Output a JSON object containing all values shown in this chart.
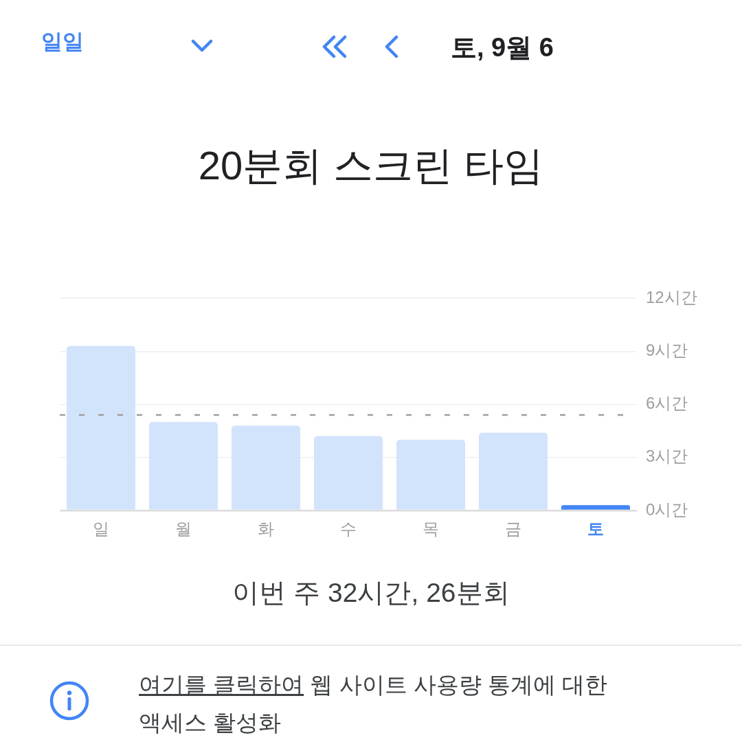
{
  "chart_data": {
    "type": "bar",
    "title": "20분회 스크린 타임",
    "categories": [
      "일",
      "월",
      "화",
      "수",
      "목",
      "금",
      "토"
    ],
    "values": [
      9.3,
      5.0,
      4.8,
      4.2,
      4.0,
      4.4,
      0.3
    ],
    "colors": [
      "#d2e3fc",
      "#d2e3fc",
      "#d2e3fc",
      "#d2e3fc",
      "#d2e3fc",
      "#d2e3fc",
      "#4285f4"
    ],
    "ylim": [
      0,
      12
    ],
    "yticks": [
      {
        "value": 0,
        "label": "0시간"
      },
      {
        "value": 3,
        "label": "3시간"
      },
      {
        "value": 6,
        "label": "6시간"
      },
      {
        "value": 9,
        "label": "9시간"
      },
      {
        "value": 12,
        "label": "12시간"
      }
    ],
    "grid": "y",
    "ref_lines": [
      {
        "axis": "y",
        "value": 5.4,
        "color": "#9e9e9e",
        "line_style": "dashed"
      }
    ],
    "annotations": [
      "일일",
      "토, 9월 6",
      "이번 주 32시간, 26분회",
      "여기를 클릭하여 웹 사이트 사용량 통계에 대한 액세스 활성화"
    ]
  }
}
